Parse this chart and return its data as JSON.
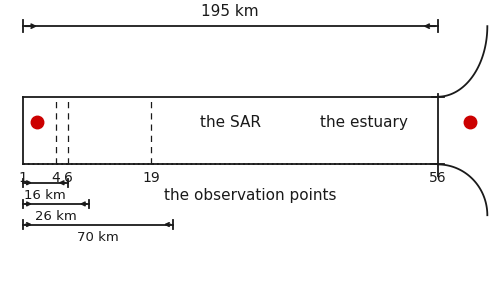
{
  "fig_width": 5.0,
  "fig_height": 2.97,
  "dpi": 100,
  "bg_color": "#ffffff",
  "line_color": "#1a1a1a",
  "red_color": "#cc0000",
  "top_label": "195 km",
  "sar_label": "the SAR",
  "estuary_label": "the estuary",
  "obs_label": "the observation points",
  "obs_points": [
    "1",
    "4",
    "6",
    "19",
    "56"
  ],
  "label_16": "16 km",
  "label_26": "26 km",
  "label_70": "70 km"
}
